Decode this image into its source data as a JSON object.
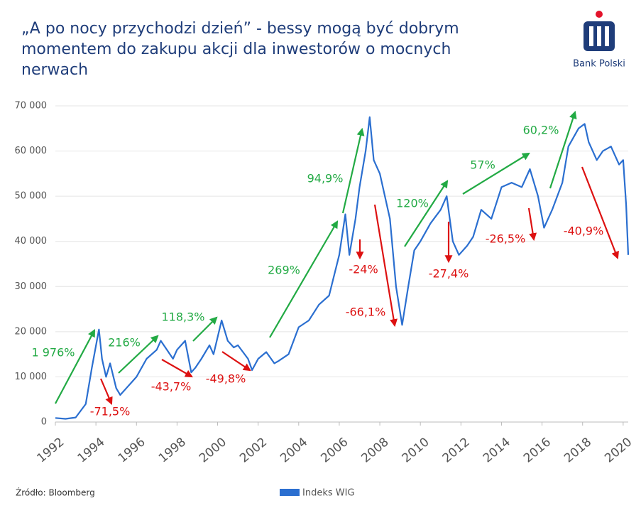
{
  "chart_data": {
    "type": "line",
    "title": [
      "„A po nocy przychodzi dzień” - bessy mogą być dobrym",
      "momentem do zakupu akcji dla inwestorów o mocnych",
      "nerwach"
    ],
    "brand": "Bank Polski",
    "source": "Źródło: Bloomberg",
    "xlim": [
      1992,
      2020.25
    ],
    "xticks": [
      1992,
      1994,
      1996,
      1998,
      2000,
      2002,
      2004,
      2006,
      2008,
      2010,
      2012,
      2014,
      2016,
      2018,
      2020
    ],
    "ylim": [
      0,
      70000
    ],
    "yticks": [
      {
        "value": 0,
        "label": "0"
      },
      {
        "value": 10000,
        "label": "10 000"
      },
      {
        "value": 20000,
        "label": "20 000"
      },
      {
        "value": 30000,
        "label": "30 000"
      },
      {
        "value": 40000,
        "label": "40 000"
      },
      {
        "value": 50000,
        "label": "50 000"
      },
      {
        "value": 60000,
        "label": "60 000"
      },
      {
        "value": 70000,
        "label": "70 000"
      }
    ],
    "grid": true,
    "x": [
      1992.0,
      1992.5,
      1993.0,
      1993.5,
      1993.8,
      1994.15,
      1994.3,
      1994.5,
      1994.7,
      1995.0,
      1995.2,
      1995.5,
      1995.8,
      1996.0,
      1996.5,
      1997.0,
      1997.2,
      1997.5,
      1997.8,
      1998.0,
      1998.4,
      1998.7,
      1998.9,
      1999.2,
      1999.6,
      1999.8,
      2000.2,
      2000.5,
      2000.8,
      2001.0,
      2001.5,
      2001.7,
      2002.0,
      2002.4,
      2002.8,
      2003.0,
      2003.5,
      2004.0,
      2004.5,
      2005.0,
      2005.5,
      2006.0,
      2006.3,
      2006.5,
      2006.8,
      2007.0,
      2007.3,
      2007.5,
      2007.7,
      2008.0,
      2008.5,
      2008.8,
      2009.1,
      2009.4,
      2009.7,
      2010.0,
      2010.5,
      2011.0,
      2011.3,
      2011.6,
      2011.9,
      2012.3,
      2012.6,
      2013.0,
      2013.5,
      2014.0,
      2014.5,
      2015.0,
      2015.4,
      2015.8,
      2016.1,
      2016.5,
      2017.0,
      2017.3,
      2017.8,
      2018.1,
      2018.3,
      2018.7,
      2019.0,
      2019.4,
      2019.8,
      2020.0,
      2020.15,
      2020.25
    ],
    "series": [
      {
        "name": "Indeks WIG",
        "color": "#2b6fd0",
        "values": [
          900,
          700,
          1000,
          4000,
          12000,
          20500,
          14000,
          10000,
          13000,
          7500,
          6000,
          7500,
          9000,
          10000,
          14000,
          16000,
          18000,
          16000,
          14000,
          16000,
          18000,
          11000,
          12000,
          14000,
          17000,
          15000,
          22500,
          18000,
          16500,
          17000,
          14000,
          11500,
          14000,
          15500,
          13000,
          13500,
          15000,
          21000,
          22500,
          26000,
          28000,
          37000,
          46000,
          37000,
          45000,
          52000,
          60000,
          67500,
          58000,
          55000,
          45000,
          30000,
          21500,
          30000,
          38000,
          40000,
          44000,
          47000,
          50000,
          40000,
          37000,
          39000,
          41000,
          47000,
          45000,
          52000,
          53000,
          52000,
          56000,
          50000,
          43000,
          47000,
          53000,
          61000,
          65000,
          66000,
          62000,
          58000,
          60000,
          61000,
          57000,
          58000,
          48000,
          37000
        ]
      }
    ],
    "annotations": [
      {
        "text": "1 976%",
        "color": "#22aa44"
      },
      {
        "text": "216%",
        "color": "#22aa44"
      },
      {
        "text": "118,3%",
        "color": "#22aa44"
      },
      {
        "text": "269%",
        "color": "#22aa44"
      },
      {
        "text": "94,9%",
        "color": "#22aa44"
      },
      {
        "text": "120%",
        "color": "#22aa44"
      },
      {
        "text": "57%",
        "color": "#22aa44"
      },
      {
        "text": "60,2%",
        "color": "#22aa44"
      },
      {
        "text": "-71,5%",
        "color": "#dd1111"
      },
      {
        "text": "-43,7%",
        "color": "#dd1111"
      },
      {
        "text": "-49,8%",
        "color": "#dd1111"
      },
      {
        "text": "-24%",
        "color": "#dd1111"
      },
      {
        "text": "-66,1%",
        "color": "#dd1111"
      },
      {
        "text": "-27,4%",
        "color": "#dd1111"
      },
      {
        "text": "-26,5%",
        "color": "#dd1111"
      },
      {
        "text": "-40,9%",
        "color": "#dd1111"
      }
    ]
  }
}
